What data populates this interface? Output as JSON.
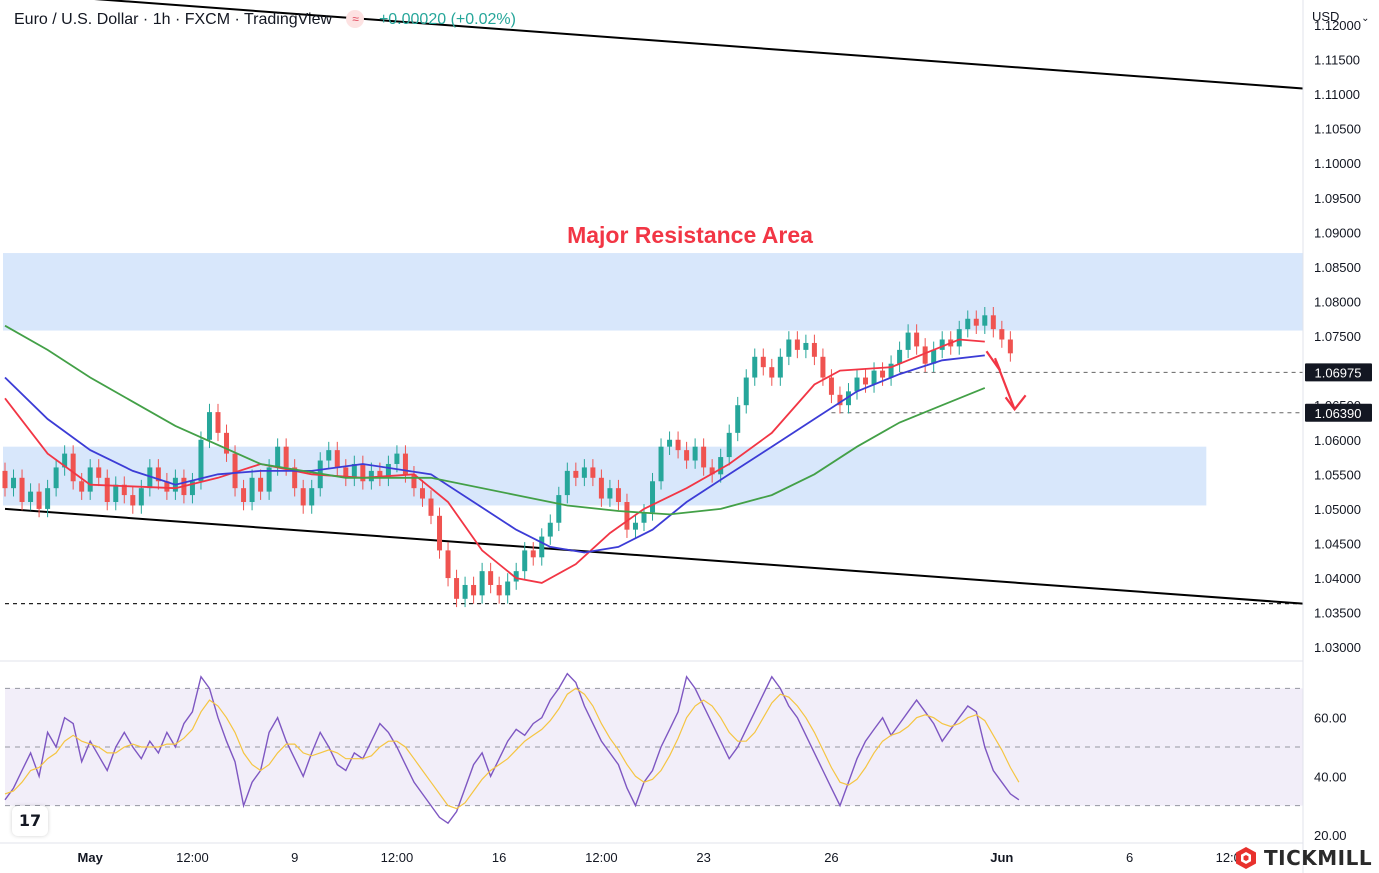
{
  "header": {
    "symbol": "Euro / U.S. Dollar · 1h · FXCM · TradingView",
    "badge_icon": "approx-icon",
    "change": "+0.00020 (+0.02%)"
  },
  "currency": {
    "label": "USD",
    "icon": "chevron-down-icon"
  },
  "brand": {
    "name": "TICKMILL",
    "accent": "#e8312d"
  },
  "colors": {
    "up": "#26a69a",
    "down": "#ef5350",
    "ma_fast": "#f23645",
    "ma_mid": "#3c3cd6",
    "ma_slow": "#43a047",
    "rsi": "#7e57c2",
    "rsi_ma": "#f5c542",
    "zone": "#d6e6fb",
    "annotation": "#f23645"
  },
  "chart_data": [
    {
      "type": "candlestick",
      "title": "",
      "annotation": "Major Resistance Area",
      "x_axis": {
        "ticks": [
          {
            "label": "May",
            "index": 10
          },
          {
            "label": "12:00",
            "index": 22
          },
          {
            "label": "9",
            "index": 34
          },
          {
            "label": "12:00",
            "index": 46
          },
          {
            "label": "16",
            "index": 58
          },
          {
            "label": "12:00",
            "index": 70
          },
          {
            "label": "23",
            "index": 82
          },
          {
            "label": "26",
            "index": 97
          },
          {
            "label": "Jun",
            "index": 117
          },
          {
            "label": "6",
            "index": 132
          },
          {
            "label": "12:00",
            "index": 144
          }
        ],
        "range": [
          0,
          157
        ]
      },
      "y_axis": {
        "range": [
          1.02815,
          1.1236
        ],
        "ticks": [
          "1.12000",
          "1.11500",
          "1.11000",
          "1.10500",
          "1.10000",
          "1.09500",
          "1.09000",
          "1.08500",
          "1.08000",
          "1.07500",
          "1.06500",
          "1.06000",
          "1.05500",
          "1.05000",
          "1.04500",
          "1.04000",
          "1.03500",
          "1.03000"
        ],
        "price_tags": [
          {
            "label": "1.06975",
            "value": 1.06975
          },
          {
            "label": "1.06390",
            "value": 1.0639
          }
        ]
      },
      "zones": [
        {
          "from_index": 0,
          "to_index": 157,
          "low": 1.0758,
          "high": 1.087
        },
        {
          "from_index": 0,
          "to_index": 141,
          "low": 1.0505,
          "high": 1.059
        }
      ],
      "trendlines": [
        {
          "from": {
            "index": 0,
            "value": 1.1247
          },
          "to": {
            "index": 157,
            "value": 1.1108
          }
        },
        {
          "from": {
            "index": 0,
            "value": 1.05
          },
          "to": {
            "index": 157,
            "value": 1.0363
          }
        }
      ],
      "levels": [
        {
          "value": 1.0363,
          "from_index": 0,
          "to_index": 157
        },
        {
          "value": 1.06975,
          "from_index": 105,
          "to_index": 157
        },
        {
          "value": 1.0639,
          "from_index": 97,
          "to_index": 157
        }
      ],
      "arrow": [
        {
          "index": 115.2,
          "value": 1.0728
        },
        {
          "index": 116.8,
          "value": 1.07
        },
        {
          "index": 116.2,
          "value": 1.0718
        },
        {
          "index": 118.5,
          "value": 1.0644
        }
      ],
      "candles": [
        [
          1.0555,
          1.053
        ],
        [
          1.053,
          1.0545
        ],
        [
          1.0545,
          1.051
        ],
        [
          1.051,
          1.0525
        ],
        [
          1.0525,
          1.05
        ],
        [
          1.05,
          1.053
        ],
        [
          1.053,
          1.056
        ],
        [
          1.056,
          1.058
        ],
        [
          1.058,
          1.054
        ],
        [
          1.054,
          1.0525
        ],
        [
          1.0525,
          1.056
        ],
        [
          1.056,
          1.0545
        ],
        [
          1.0545,
          1.051
        ],
        [
          1.051,
          1.0535
        ],
        [
          1.0535,
          1.052
        ],
        [
          1.052,
          1.0505
        ],
        [
          1.0505,
          1.053
        ],
        [
          1.053,
          1.056
        ],
        [
          1.056,
          1.054
        ],
        [
          1.054,
          1.0525
        ],
        [
          1.0525,
          1.0545
        ],
        [
          1.0545,
          1.052
        ],
        [
          1.052,
          1.054
        ],
        [
          1.054,
          1.06
        ],
        [
          1.06,
          1.064
        ],
        [
          1.064,
          1.061
        ],
        [
          1.061,
          1.058
        ],
        [
          1.058,
          1.053
        ],
        [
          1.053,
          1.051
        ],
        [
          1.051,
          1.0545
        ],
        [
          1.0545,
          1.0525
        ],
        [
          1.0525,
          1.056
        ],
        [
          1.056,
          1.059
        ],
        [
          1.059,
          1.056
        ],
        [
          1.056,
          1.053
        ],
        [
          1.053,
          1.0505
        ],
        [
          1.0505,
          1.053
        ],
        [
          1.053,
          1.057
        ],
        [
          1.057,
          1.0585
        ],
        [
          1.0585,
          1.056
        ],
        [
          1.056,
          1.0545
        ],
        [
          1.0545,
          1.0565
        ],
        [
          1.0565,
          1.054
        ],
        [
          1.054,
          1.0555
        ],
        [
          1.0555,
          1.0545
        ],
        [
          1.0545,
          1.0565
        ],
        [
          1.0565,
          1.058
        ],
        [
          1.058,
          1.055
        ],
        [
          1.055,
          1.053
        ],
        [
          1.053,
          1.0515
        ],
        [
          1.0515,
          1.049
        ],
        [
          1.049,
          1.044
        ],
        [
          1.044,
          1.04
        ],
        [
          1.04,
          1.037
        ],
        [
          1.037,
          1.039
        ],
        [
          1.039,
          1.0375
        ],
        [
          1.0375,
          1.041
        ],
        [
          1.041,
          1.039
        ],
        [
          1.039,
          1.0375
        ],
        [
          1.0375,
          1.0395
        ],
        [
          1.0395,
          1.041
        ],
        [
          1.041,
          1.044
        ],
        [
          1.044,
          1.043
        ],
        [
          1.043,
          1.046
        ],
        [
          1.046,
          1.048
        ],
        [
          1.048,
          1.052
        ],
        [
          1.052,
          1.0555
        ],
        [
          1.0555,
          1.0545
        ],
        [
          1.0545,
          1.056
        ],
        [
          1.056,
          1.0545
        ],
        [
          1.0545,
          1.0515
        ],
        [
          1.0515,
          1.053
        ],
        [
          1.053,
          1.051
        ],
        [
          1.051,
          1.047
        ],
        [
          1.047,
          1.048
        ],
        [
          1.048,
          1.0495
        ],
        [
          1.0495,
          1.054
        ],
        [
          1.054,
          1.059
        ],
        [
          1.059,
          1.06
        ],
        [
          1.06,
          1.0585
        ],
        [
          1.0585,
          1.057
        ],
        [
          1.057,
          1.059
        ],
        [
          1.059,
          1.056
        ],
        [
          1.056,
          1.055
        ],
        [
          1.055,
          1.0575
        ],
        [
          1.0575,
          1.061
        ],
        [
          1.061,
          1.065
        ],
        [
          1.065,
          1.069
        ],
        [
          1.069,
          1.072
        ],
        [
          1.072,
          1.0705
        ],
        [
          1.0705,
          1.069
        ],
        [
          1.069,
          1.072
        ],
        [
          1.072,
          1.0745
        ],
        [
          1.0745,
          1.073
        ],
        [
          1.073,
          1.074
        ],
        [
          1.074,
          1.072
        ],
        [
          1.072,
          1.069
        ],
        [
          1.069,
          1.0665
        ],
        [
          1.0665,
          1.065
        ],
        [
          1.065,
          1.067
        ],
        [
          1.067,
          1.069
        ],
        [
          1.069,
          1.068
        ],
        [
          1.068,
          1.07
        ],
        [
          1.07,
          1.069
        ],
        [
          1.069,
          1.071
        ],
        [
          1.071,
          1.073
        ],
        [
          1.073,
          1.0755
        ],
        [
          1.0755,
          1.0735
        ],
        [
          1.0735,
          1.071
        ],
        [
          1.071,
          1.073
        ],
        [
          1.073,
          1.0745
        ],
        [
          1.0745,
          1.0735
        ],
        [
          1.0735,
          1.076
        ],
        [
          1.076,
          1.0775
        ],
        [
          1.0775,
          1.0765
        ],
        [
          1.0765,
          1.078
        ],
        [
          1.078,
          1.076
        ],
        [
          1.076,
          1.0745
        ],
        [
          1.0745,
          1.0725
        ]
      ],
      "series": [
        {
          "name": "",
          "color": "#f23645",
          "points": [
            [
              0,
              1.066
            ],
            [
              5,
              1.058
            ],
            [
              10,
              1.0535
            ],
            [
              20,
              1.053
            ],
            [
              25,
              1.0545
            ],
            [
              30,
              1.0565
            ],
            [
              36,
              1.055
            ],
            [
              42,
              1.0545
            ],
            [
              48,
              1.055
            ],
            [
              52,
              1.051
            ],
            [
              56,
              1.044
            ],
            [
              60,
              1.04
            ],
            [
              63,
              1.0393
            ],
            [
              67,
              1.042
            ],
            [
              71,
              1.0465
            ],
            [
              75,
              1.05
            ],
            [
              80,
              1.053
            ],
            [
              85,
              1.0565
            ],
            [
              90,
              1.061
            ],
            [
              95,
              1.068
            ],
            [
              98,
              1.07
            ],
            [
              104,
              1.0705
            ],
            [
              108,
              1.0725
            ],
            [
              112,
              1.0745
            ],
            [
              115,
              1.0742
            ]
          ]
        },
        {
          "name": "",
          "color": "#3c3cd6",
          "points": [
            [
              0,
              1.069
            ],
            [
              5,
              1.063
            ],
            [
              10,
              1.0585
            ],
            [
              15,
              1.0555
            ],
            [
              20,
              1.0535
            ],
            [
              25,
              1.055
            ],
            [
              30,
              1.0555
            ],
            [
              36,
              1.0555
            ],
            [
              42,
              1.0565
            ],
            [
              50,
              1.055
            ],
            [
              55,
              1.051
            ],
            [
              60,
              1.047
            ],
            [
              64,
              1.0445
            ],
            [
              68,
              1.0437
            ],
            [
              72,
              1.0445
            ],
            [
              76,
              1.047
            ],
            [
              80,
              1.051
            ],
            [
              85,
              1.055
            ],
            [
              90,
              1.059
            ],
            [
              95,
              1.063
            ],
            [
              100,
              1.067
            ],
            [
              105,
              1.0695
            ],
            [
              110,
              1.0715
            ],
            [
              115,
              1.0722
            ]
          ]
        },
        {
          "name": "",
          "color": "#43a047",
          "points": [
            [
              0,
              1.0765
            ],
            [
              5,
              1.073
            ],
            [
              10,
              1.069
            ],
            [
              20,
              1.062
            ],
            [
              30,
              1.0565
            ],
            [
              40,
              1.0545
            ],
            [
              50,
              1.0545
            ],
            [
              60,
              1.052
            ],
            [
              66,
              1.0505
            ],
            [
              72,
              1.0497
            ],
            [
              78,
              1.0492
            ],
            [
              84,
              1.05
            ],
            [
              90,
              1.052
            ],
            [
              95,
              1.055
            ],
            [
              100,
              1.059
            ],
            [
              105,
              1.0625
            ],
            [
              110,
              1.065
            ],
            [
              115,
              1.0675
            ]
          ]
        }
      ]
    },
    {
      "type": "line",
      "title": "",
      "y_axis": {
        "range": [
          17.6,
          79
        ],
        "ticks": [
          "60.00",
          "40.00",
          "20.00"
        ]
      },
      "bands": [
        70,
        50,
        30
      ],
      "series": [
        {
          "name": "",
          "color": "#7e57c2",
          "values": [
            32,
            36,
            42,
            48,
            40,
            55,
            50,
            60,
            58,
            45,
            52,
            47,
            42,
            50,
            55,
            50,
            46,
            52,
            48,
            55,
            50,
            58,
            62,
            74,
            70,
            60,
            52,
            45,
            30,
            38,
            42,
            55,
            60,
            52,
            46,
            40,
            48,
            55,
            50,
            44,
            42,
            48,
            46,
            52,
            58,
            55,
            50,
            44,
            38,
            34,
            30,
            26,
            24,
            28,
            36,
            44,
            48,
            40,
            46,
            52,
            56,
            54,
            58,
            60,
            66,
            70,
            75,
            72,
            64,
            58,
            52,
            48,
            44,
            36,
            30,
            38,
            42,
            50,
            56,
            62,
            74,
            70,
            64,
            58,
            52,
            46,
            50,
            56,
            62,
            68,
            74,
            70,
            64,
            60,
            54,
            48,
            42,
            36,
            30,
            38,
            46,
            52,
            56,
            60,
            54,
            58,
            62,
            66,
            62,
            58,
            52,
            56,
            60,
            64,
            62,
            50,
            42,
            38,
            34,
            32
          ]
        },
        {
          "name": "",
          "color": "#f5c542",
          "values": [
            34,
            35,
            38,
            42,
            43,
            46,
            48,
            52,
            54,
            52,
            51,
            50,
            48,
            48,
            50,
            51,
            50,
            50,
            50,
            51,
            51,
            53,
            56,
            62,
            66,
            64,
            60,
            55,
            48,
            44,
            42,
            44,
            48,
            51,
            51,
            48,
            47,
            48,
            49,
            48,
            46,
            46,
            46,
            47,
            50,
            52,
            52,
            50,
            46,
            42,
            38,
            34,
            30,
            29,
            31,
            35,
            39,
            42,
            44,
            46,
            49,
            52,
            54,
            56,
            59,
            63,
            68,
            70,
            68,
            64,
            58,
            53,
            49,
            44,
            40,
            38,
            39,
            42,
            47,
            53,
            60,
            64,
            66,
            64,
            60,
            55,
            52,
            52,
            55,
            60,
            65,
            68,
            67,
            64,
            60,
            55,
            49,
            43,
            38,
            37,
            39,
            43,
            48,
            52,
            54,
            55,
            57,
            60,
            61,
            60,
            58,
            57,
            58,
            60,
            61,
            59,
            54,
            49,
            43,
            38
          ]
        }
      ]
    }
  ]
}
